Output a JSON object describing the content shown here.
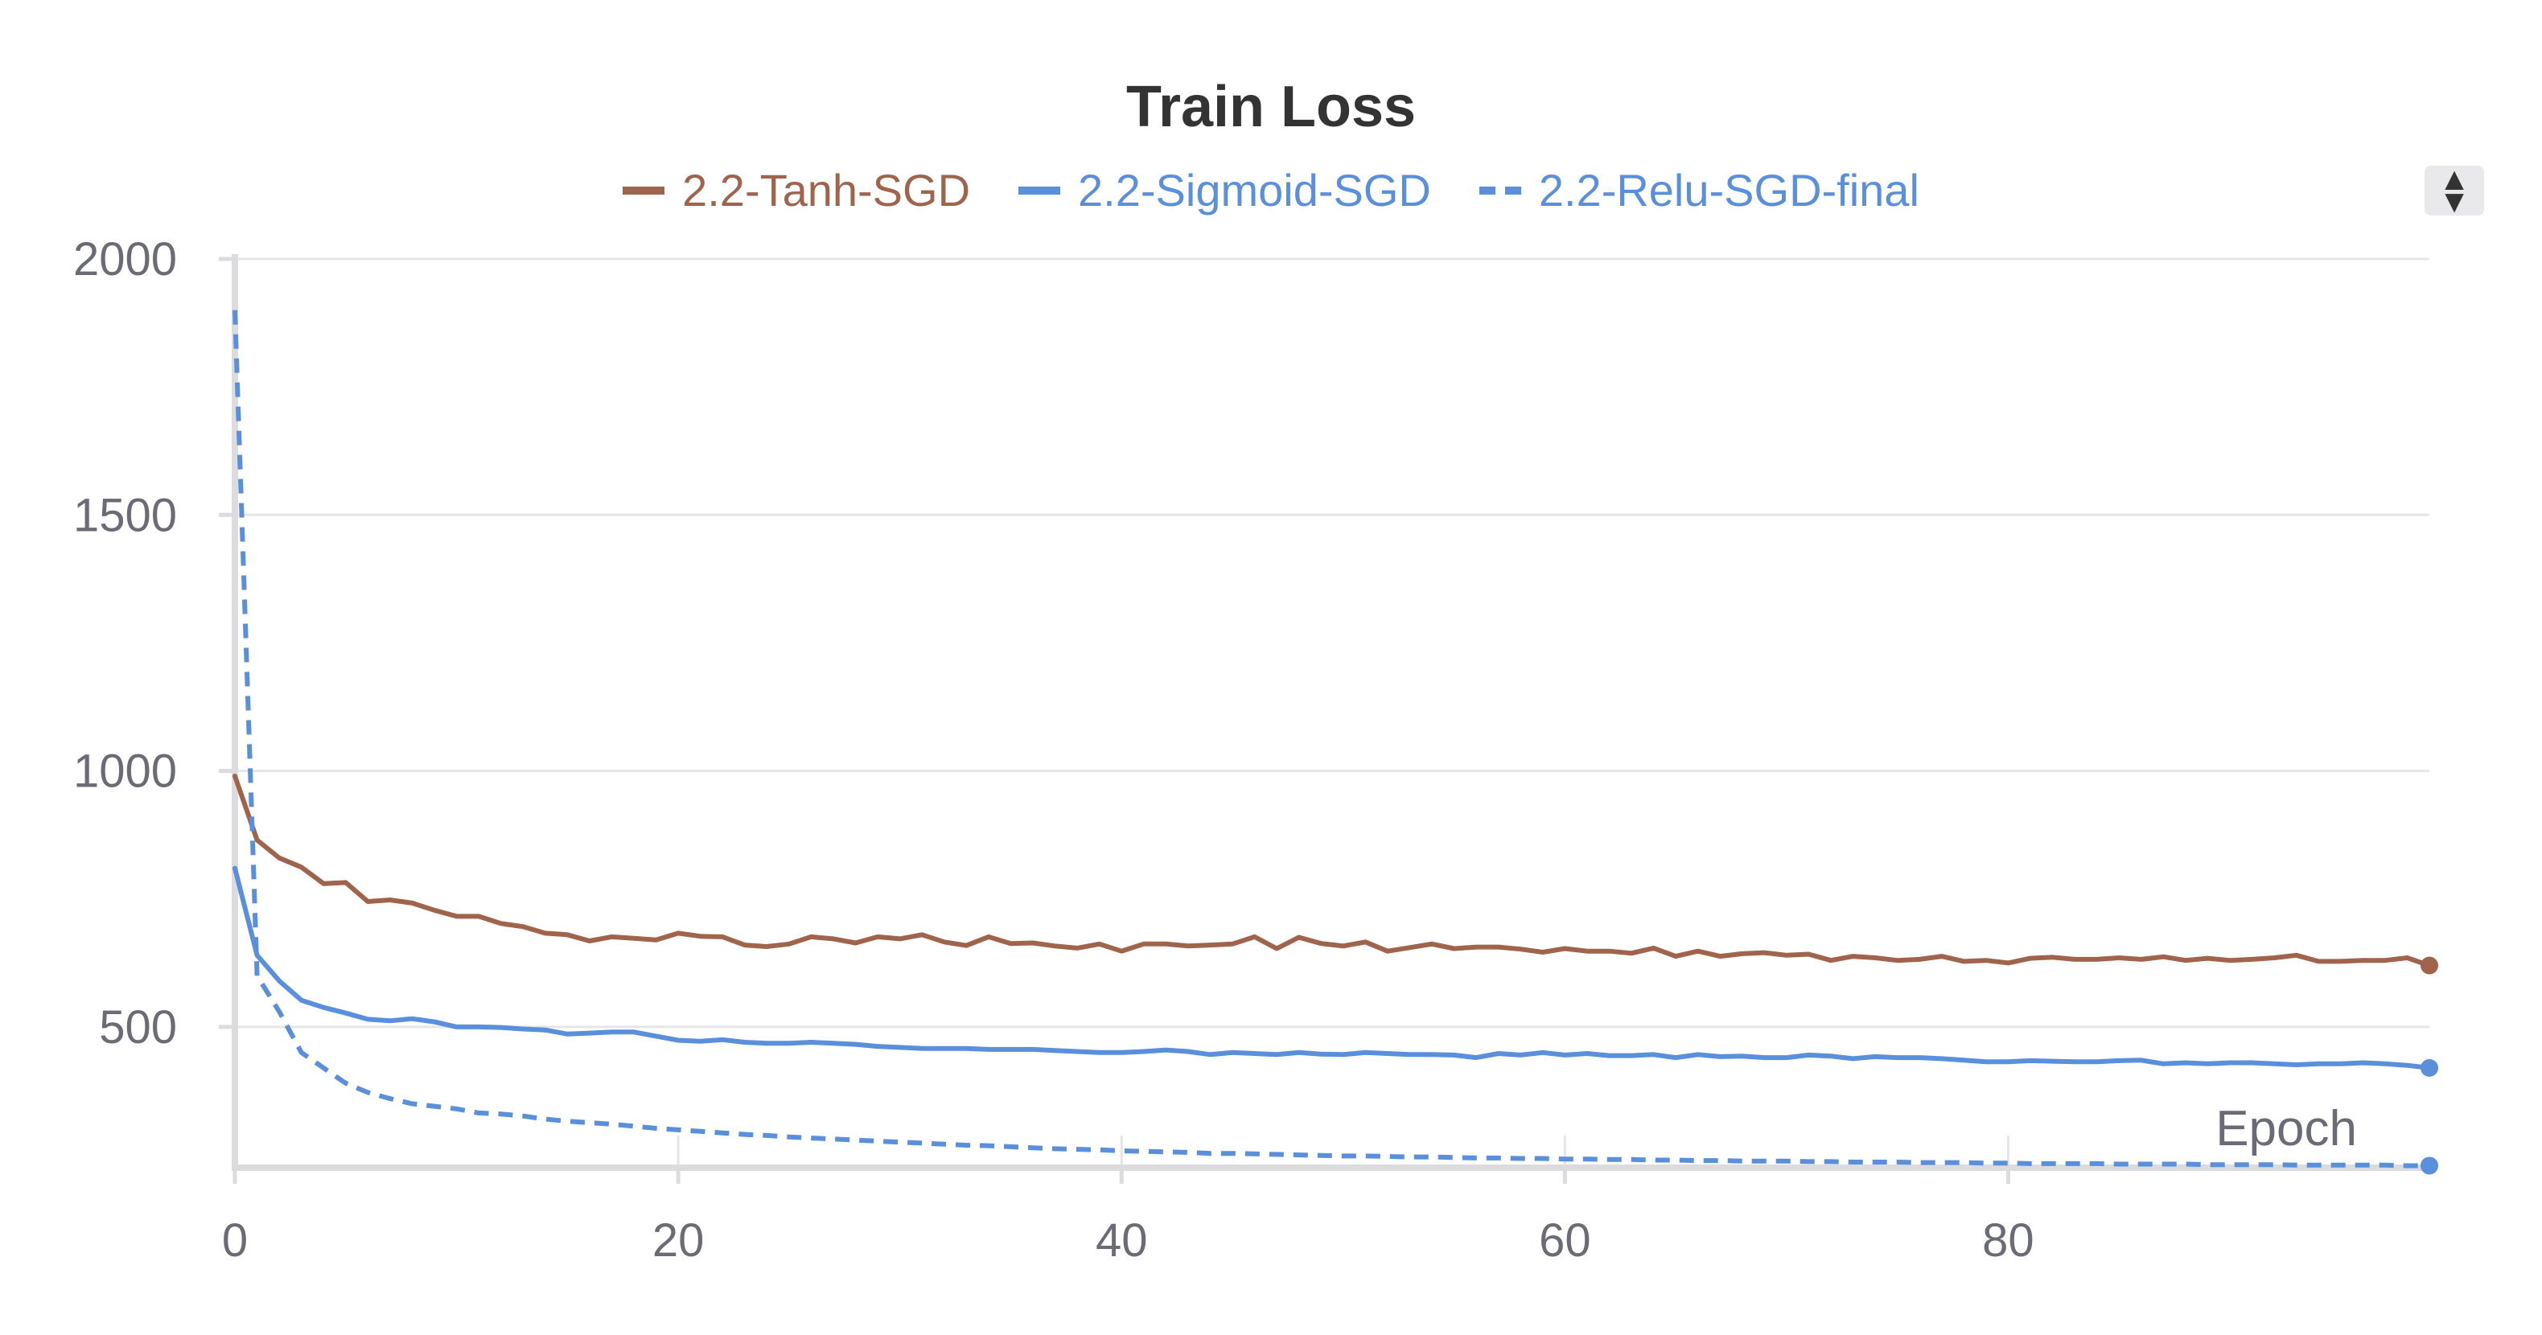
{
  "chart_data": {
    "type": "line",
    "title": "Train Loss",
    "xlabel": "Epoch",
    "ylabel": "",
    "xlim": [
      0,
      99
    ],
    "ylim": [
      225,
      2000
    ],
    "xticks": [
      0,
      20,
      40,
      60,
      80
    ],
    "yticks": [
      500,
      1000,
      1500,
      2000
    ],
    "grid": true,
    "legend_position": "top-center",
    "series": [
      {
        "name": "2.2-Tanh-SGD",
        "color": "#a0644c",
        "style": "solid",
        "x": [
          0,
          1,
          2,
          3,
          4,
          5,
          6,
          7,
          8,
          9,
          10,
          11,
          12,
          13,
          14,
          15,
          16,
          17,
          18,
          19,
          20,
          21,
          22,
          23,
          24,
          25,
          26,
          27,
          28,
          29,
          30,
          31,
          32,
          33,
          34,
          35,
          36,
          37,
          38,
          39,
          40,
          41,
          42,
          43,
          44,
          45,
          46,
          47,
          48,
          49,
          50,
          51,
          52,
          53,
          54,
          55,
          56,
          57,
          58,
          59,
          60,
          61,
          62,
          63,
          64,
          65,
          66,
          67,
          68,
          69,
          70,
          71,
          72,
          73,
          74,
          75,
          76,
          77,
          78,
          79,
          80,
          81,
          82,
          83,
          84,
          85,
          86,
          87,
          88,
          89,
          90,
          91,
          92,
          93,
          94,
          95,
          96,
          97,
          98,
          99
        ],
        "values": [
          990,
          865,
          830,
          812,
          780,
          782,
          745,
          748,
          742,
          728,
          716,
          716,
          702,
          696,
          683,
          680,
          668,
          676,
          673,
          670,
          683,
          677,
          676,
          660,
          657,
          662,
          676,
          672,
          664,
          676,
          672,
          680,
          666,
          659,
          676,
          663,
          664,
          658,
          654,
          662,
          648,
          662,
          662,
          658,
          660,
          662,
          676,
          653,
          675,
          663,
          658,
          666,
          648,
          655,
          662,
          653,
          656,
          656,
          652,
          646,
          653,
          648,
          648,
          644,
          654,
          638,
          648,
          638,
          643,
          645,
          640,
          642,
          630,
          638,
          635,
          630,
          632,
          638,
          628,
          630,
          625,
          634,
          636,
          632,
          632,
          635,
          632,
          637,
          630,
          634,
          630,
          632,
          635,
          640,
          628,
          628,
          630,
          630,
          635,
          620
        ]
      },
      {
        "name": "2.2-Sigmoid-SGD",
        "color": "#5a8fdc",
        "style": "solid",
        "x": [
          0,
          1,
          2,
          3,
          4,
          5,
          6,
          7,
          8,
          9,
          10,
          11,
          12,
          13,
          14,
          15,
          16,
          17,
          18,
          19,
          20,
          21,
          22,
          23,
          24,
          25,
          26,
          27,
          28,
          29,
          30,
          31,
          32,
          33,
          34,
          35,
          36,
          37,
          38,
          39,
          40,
          41,
          42,
          43,
          44,
          45,
          46,
          47,
          48,
          49,
          50,
          51,
          52,
          53,
          54,
          55,
          56,
          57,
          58,
          59,
          60,
          61,
          62,
          63,
          64,
          65,
          66,
          67,
          68,
          69,
          70,
          71,
          72,
          73,
          74,
          75,
          76,
          77,
          78,
          79,
          80,
          81,
          82,
          83,
          84,
          85,
          86,
          87,
          88,
          89,
          90,
          91,
          92,
          93,
          94,
          95,
          96,
          97,
          98,
          99
        ],
        "values": [
          810,
          640,
          590,
          552,
          538,
          527,
          515,
          512,
          516,
          510,
          500,
          500,
          499,
          496,
          494,
          486,
          488,
          490,
          490,
          482,
          474,
          472,
          475,
          470,
          468,
          468,
          470,
          468,
          466,
          462,
          460,
          458,
          458,
          458,
          456,
          456,
          456,
          454,
          452,
          450,
          450,
          452,
          455,
          452,
          446,
          450,
          448,
          446,
          450,
          447,
          446,
          450,
          448,
          446,
          446,
          445,
          440,
          448,
          445,
          450,
          445,
          448,
          444,
          444,
          446,
          440,
          446,
          442,
          443,
          440,
          440,
          445,
          443,
          438,
          442,
          440,
          440,
          438,
          435,
          432,
          432,
          434,
          433,
          432,
          432,
          434,
          435,
          428,
          430,
          428,
          430,
          430,
          428,
          426,
          428,
          428,
          430,
          428,
          425,
          420
        ]
      },
      {
        "name": "2.2-Relu-SGD-final",
        "color": "#5a8fdc",
        "style": "dashed",
        "x": [
          0,
          1,
          2,
          3,
          4,
          5,
          6,
          7,
          8,
          9,
          10,
          11,
          12,
          13,
          14,
          15,
          16,
          17,
          18,
          19,
          20,
          21,
          22,
          23,
          24,
          25,
          26,
          27,
          28,
          29,
          30,
          31,
          32,
          33,
          34,
          35,
          36,
          37,
          38,
          39,
          40,
          41,
          42,
          43,
          44,
          45,
          46,
          47,
          48,
          49,
          50,
          51,
          52,
          53,
          54,
          55,
          56,
          57,
          58,
          59,
          60,
          61,
          62,
          63,
          64,
          65,
          66,
          67,
          68,
          69,
          70,
          71,
          72,
          73,
          74,
          75,
          76,
          77,
          78,
          79,
          80,
          81,
          82,
          83,
          84,
          85,
          86,
          87,
          88,
          89,
          90,
          91,
          92,
          93,
          94,
          95,
          96,
          97,
          98,
          99
        ],
        "values": [
          1900,
          600,
          530,
          450,
          420,
          390,
          372,
          360,
          350,
          345,
          340,
          332,
          330,
          326,
          320,
          316,
          313,
          310,
          306,
          302,
          299,
          296,
          293,
          290,
          288,
          285,
          283,
          281,
          279,
          277,
          275,
          273,
          271,
          269,
          268,
          266,
          264,
          262,
          261,
          260,
          258,
          257,
          256,
          255,
          253,
          253,
          252,
          251,
          250,
          249,
          248,
          248,
          247,
          246,
          246,
          245,
          244,
          244,
          243,
          243,
          242,
          242,
          241,
          241,
          240,
          240,
          239,
          239,
          238,
          238,
          238,
          237,
          237,
          236,
          236,
          236,
          235,
          235,
          235,
          234,
          234,
          233,
          233,
          233,
          233,
          232,
          232,
          232,
          232,
          231,
          231,
          231,
          231,
          230,
          230,
          230,
          230,
          230,
          229,
          229
        ]
      }
    ]
  }
}
